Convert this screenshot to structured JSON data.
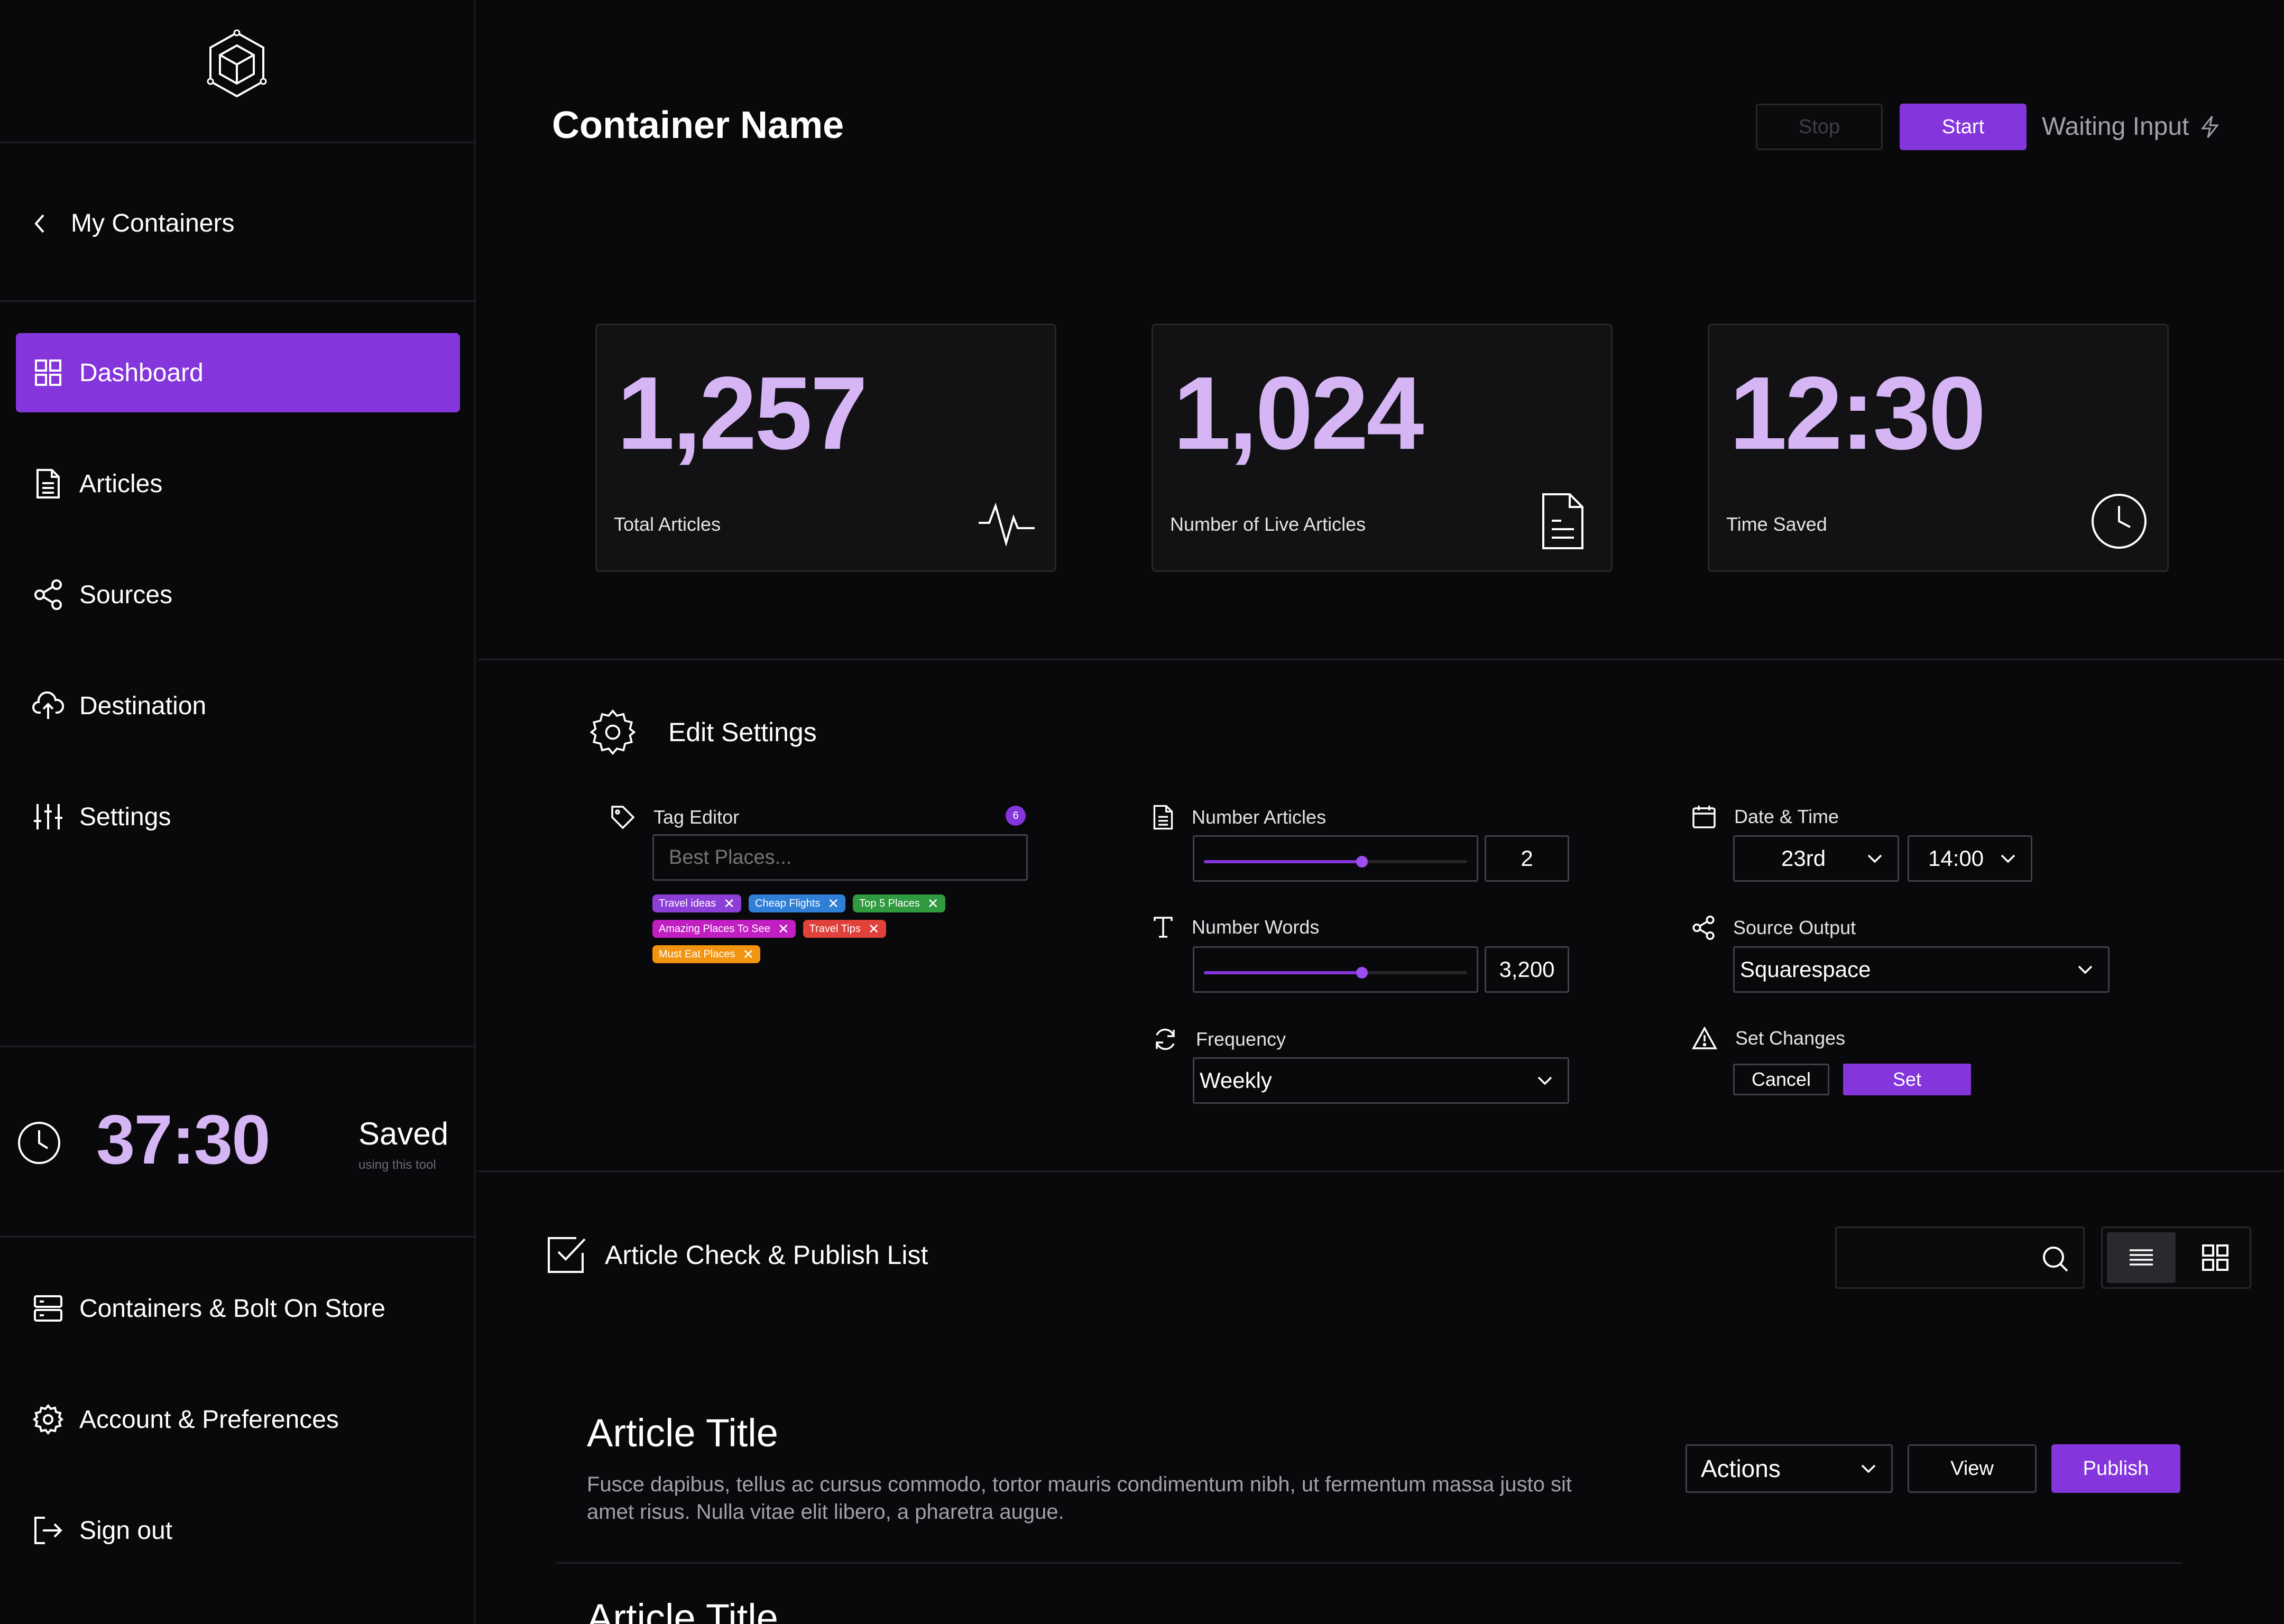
{
  "sidebar": {
    "back_label": "My Containers",
    "nav": [
      {
        "label": "Dashboard",
        "icon": "grid-icon",
        "active": true
      },
      {
        "label": "Articles",
        "icon": "document-icon",
        "active": false
      },
      {
        "label": "Sources",
        "icon": "share-icon",
        "active": false
      },
      {
        "label": "Destination",
        "icon": "cloud-upload-icon",
        "active": false
      },
      {
        "label": "Settings",
        "icon": "sliders-icon",
        "active": false
      }
    ],
    "saved": {
      "time": "37:30",
      "label": "Saved",
      "sub": "using this tool"
    },
    "bottom": [
      {
        "label": "Containers & Bolt On Store",
        "icon": "server-icon"
      },
      {
        "label": "Account & Preferences",
        "icon": "gear-icon"
      },
      {
        "label": "Sign out",
        "icon": "sign-out-icon"
      }
    ]
  },
  "header": {
    "title": "Container Name",
    "stop_label": "Stop",
    "start_label": "Start",
    "status": "Waiting Input"
  },
  "stats": [
    {
      "value": "1,257",
      "label": "Total Articles",
      "icon": "activity-icon"
    },
    {
      "value": "1,024",
      "label": "Number of Live Articles",
      "icon": "document-icon"
    },
    {
      "value": "12:30",
      "label": "Time Saved",
      "icon": "clock-icon"
    }
  ],
  "settings": {
    "title": "Edit Settings",
    "tag_editor": {
      "label": "Tag Editor",
      "count": "6",
      "placeholder": "Best Places...",
      "tags": [
        {
          "label": "Travel ideas",
          "color": "#8b3fd6"
        },
        {
          "label": "Cheap Flights",
          "color": "#2f7fd6"
        },
        {
          "label": "Top 5 Places",
          "color": "#2f9a3f"
        },
        {
          "label": "Amazing Places To See",
          "color": "#c21fc2"
        },
        {
          "label": "Travel Tips",
          "color": "#e0413a"
        },
        {
          "label": "Must Eat Places",
          "color": "#f2940f"
        }
      ]
    },
    "number_articles": {
      "label": "Number Articles",
      "value": "2",
      "level": 0.6
    },
    "number_words": {
      "label": "Number Words",
      "value": "3,200",
      "level": 0.6
    },
    "frequency": {
      "label": "Frequency",
      "value": "Weekly"
    },
    "date_time": {
      "label": "Date & Time",
      "day": "23rd",
      "time": "14:00"
    },
    "source_output": {
      "label": "Source Output",
      "value": "Squarespace"
    },
    "set_changes": {
      "label": "Set Changes",
      "cancel": "Cancel",
      "set": "Set"
    }
  },
  "article_list": {
    "title": "Article Check & Publish List",
    "articles": [
      {
        "title": "Article Title",
        "desc": "Fusce dapibus, tellus ac cursus commodo, tortor mauris condimentum nibh, ut fermentum massa justo sit amet risus. Nulla vitae elit libero, a pharetra augue.",
        "actions_label": "Actions",
        "view_label": "View",
        "publish_label": "Publish"
      },
      {
        "title": "Article Title"
      }
    ]
  },
  "colors": {
    "accent": "#8435db",
    "accent_light": "#d5b5f4",
    "background": "#09090b"
  }
}
